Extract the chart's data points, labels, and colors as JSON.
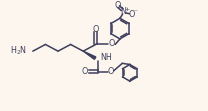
{
  "bg_color": "#fdf6ee",
  "line_color": "#3d3d5c",
  "line_width": 1.1,
  "font_size": 5.8,
  "fig_width": 2.08,
  "fig_height": 1.11,
  "dpi": 100,
  "xlim": [
    0,
    10.5
  ],
  "ylim": [
    0,
    5.2
  ]
}
